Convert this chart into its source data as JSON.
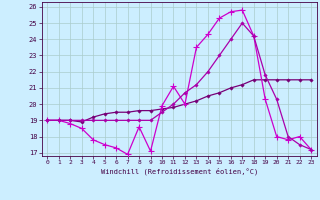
{
  "xlabel": "Windchill (Refroidissement éolien,°C)",
  "xlim": [
    -0.5,
    23.5
  ],
  "ylim": [
    16.8,
    26.3
  ],
  "yticks": [
    17,
    18,
    19,
    20,
    21,
    22,
    23,
    24,
    25,
    26
  ],
  "xticks": [
    0,
    1,
    2,
    3,
    4,
    5,
    6,
    7,
    8,
    9,
    10,
    11,
    12,
    13,
    14,
    15,
    16,
    17,
    18,
    19,
    20,
    21,
    22,
    23
  ],
  "background_color": "#cceeff",
  "grid_color": "#aacccc",
  "s1_x": [
    0,
    1,
    2,
    3,
    4,
    5,
    6,
    7,
    8,
    9,
    10,
    11,
    12,
    13,
    14,
    15,
    16,
    17,
    18,
    19,
    20,
    21,
    22,
    23
  ],
  "s1_y": [
    19.0,
    19.0,
    19.0,
    18.9,
    19.2,
    19.4,
    19.5,
    19.5,
    19.6,
    19.6,
    19.7,
    19.8,
    20.0,
    20.2,
    20.5,
    20.7,
    21.0,
    21.2,
    21.5,
    21.5,
    21.5,
    21.5,
    21.5,
    21.5
  ],
  "s1_color": "#770077",
  "s2_x": [
    0,
    1,
    2,
    3,
    4,
    5,
    6,
    7,
    8,
    9,
    10,
    11,
    12,
    13,
    14,
    15,
    16,
    17,
    18,
    19,
    20,
    21,
    22,
    23
  ],
  "s2_y": [
    19.0,
    19.0,
    18.8,
    18.5,
    17.8,
    17.5,
    17.3,
    16.9,
    18.6,
    17.1,
    19.9,
    21.1,
    20.0,
    23.5,
    24.3,
    25.3,
    25.7,
    25.8,
    24.2,
    20.3,
    18.0,
    17.8,
    18.0,
    17.2
  ],
  "s2_color": "#cc00cc",
  "s3_x": [
    0,
    1,
    2,
    3,
    4,
    5,
    6,
    7,
    8,
    9,
    10,
    11,
    12,
    13,
    14,
    15,
    16,
    17,
    18,
    19,
    20,
    21,
    22,
    23
  ],
  "s3_y": [
    19.0,
    19.0,
    19.0,
    19.0,
    19.0,
    19.0,
    19.0,
    19.0,
    19.0,
    19.0,
    19.5,
    20.0,
    20.7,
    21.2,
    22.0,
    23.0,
    24.0,
    25.0,
    24.2,
    21.8,
    20.3,
    18.0,
    17.5,
    17.2
  ],
  "s3_color": "#aa00aa"
}
